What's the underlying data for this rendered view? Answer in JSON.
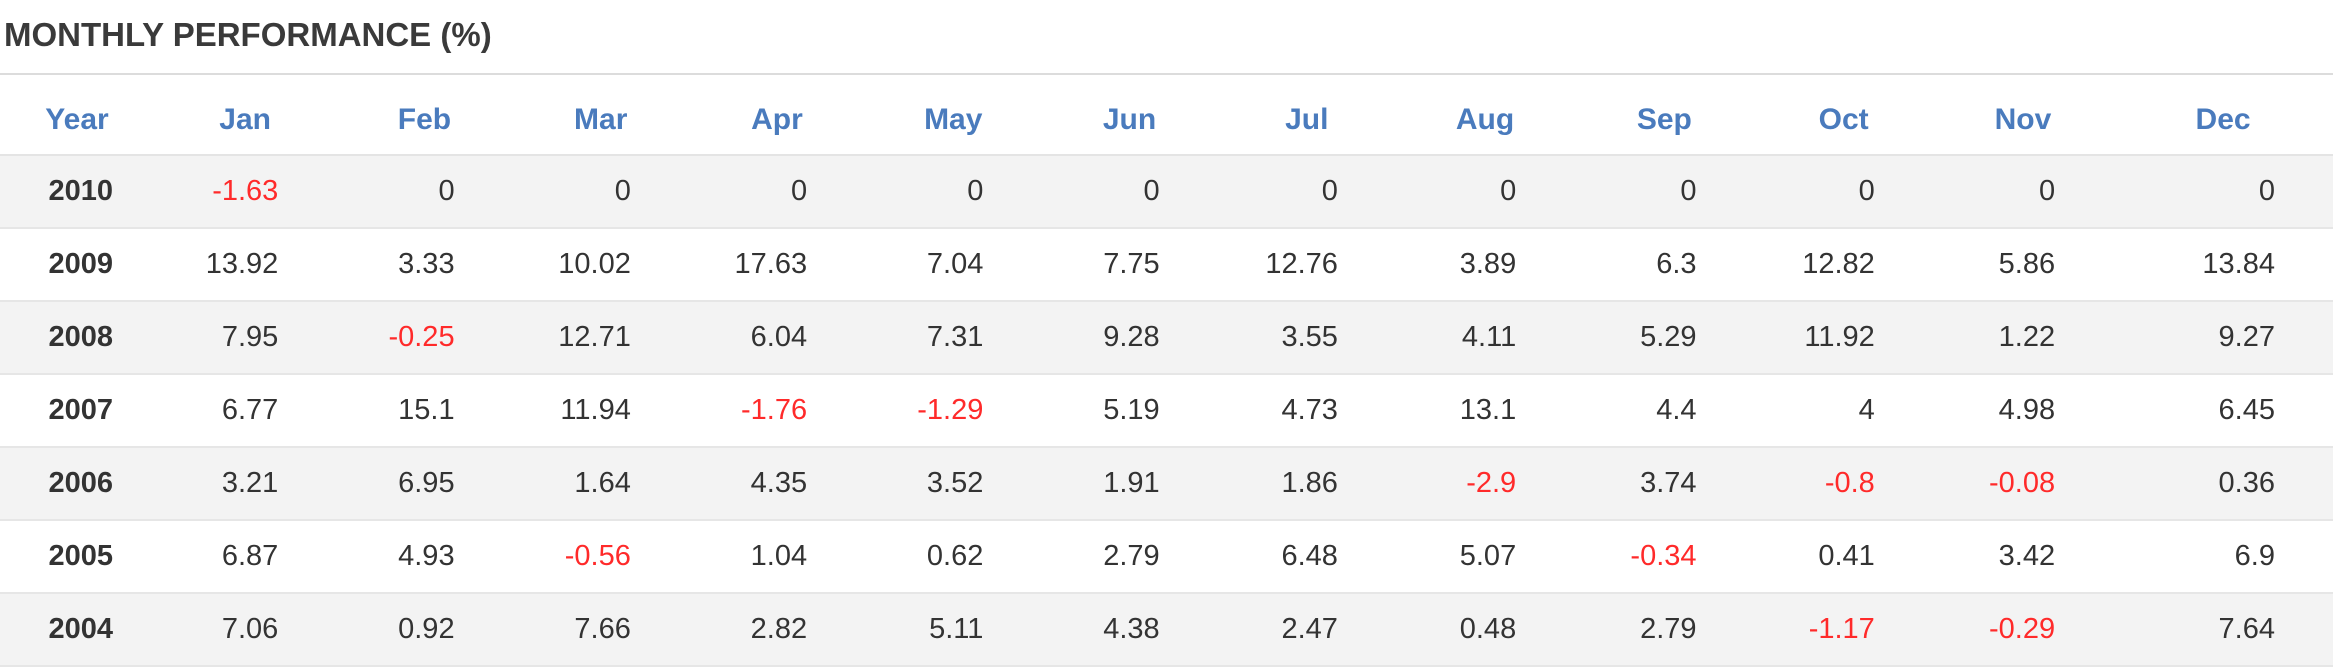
{
  "title": "MONTHLY PERFORMANCE (%)",
  "columns": [
    "Year",
    "Jan",
    "Feb",
    "Mar",
    "Apr",
    "May",
    "Jun",
    "Jul",
    "Aug",
    "Sep",
    "Oct",
    "Nov",
    "Dec"
  ],
  "rows": [
    [
      "2010",
      "-1.63",
      "0",
      "0",
      "0",
      "0",
      "0",
      "0",
      "0",
      "0",
      "0",
      "0",
      "0"
    ],
    [
      "2009",
      "13.92",
      "3.33",
      "10.02",
      "17.63",
      "7.04",
      "7.75",
      "12.76",
      "3.89",
      "6.3",
      "12.82",
      "5.86",
      "13.84"
    ],
    [
      "2008",
      "7.95",
      "-0.25",
      "12.71",
      "6.04",
      "7.31",
      "9.28",
      "3.55",
      "4.11",
      "5.29",
      "11.92",
      "1.22",
      "9.27"
    ],
    [
      "2007",
      "6.77",
      "15.1",
      "11.94",
      "-1.76",
      "-1.29",
      "5.19",
      "4.73",
      "13.1",
      "4.4",
      "4",
      "4.98",
      "6.45"
    ],
    [
      "2006",
      "3.21",
      "6.95",
      "1.64",
      "4.35",
      "3.52",
      "1.91",
      "1.86",
      "-2.9",
      "3.74",
      "-0.8",
      "-0.08",
      "0.36"
    ],
    [
      "2005",
      "6.87",
      "4.93",
      "-0.56",
      "1.04",
      "0.62",
      "2.79",
      "6.48",
      "5.07",
      "-0.34",
      "0.41",
      "3.42",
      "6.9"
    ],
    [
      "2004",
      "7.06",
      "0.92",
      "7.66",
      "2.82",
      "5.11",
      "4.38",
      "2.47",
      "0.48",
      "2.79",
      "-1.17",
      "-0.29",
      "7.64"
    ]
  ],
  "colors": {
    "header_text": "#4a7bbd",
    "negative": "#ff2a2a",
    "text": "#333333",
    "shaded_row": "#f3f3f3"
  }
}
